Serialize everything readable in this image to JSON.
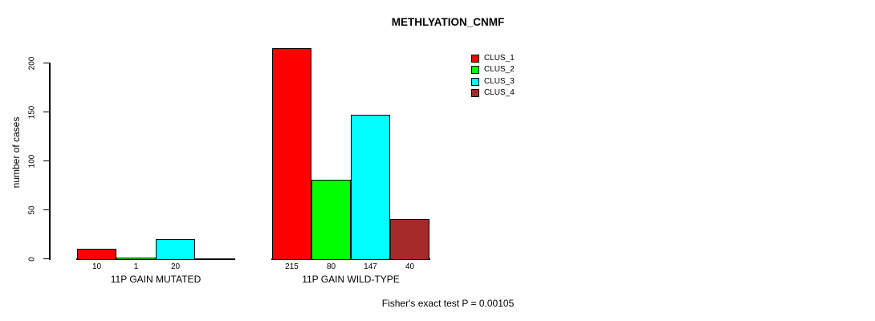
{
  "chart_data": {
    "type": "bar",
    "title": "METHLYATION_CNMF",
    "ylabel": "number of cases",
    "xlabel": "",
    "ylim": [
      0,
      220
    ],
    "yticks": [
      0,
      50,
      100,
      150,
      200
    ],
    "grid": false,
    "legend_position": "top-right",
    "categories": [
      "11P GAIN MUTATED",
      "11P GAIN WILD-TYPE"
    ],
    "series": [
      {
        "name": "CLUS_1",
        "color": "#ff0000",
        "values": [
          10,
          215
        ]
      },
      {
        "name": "CLUS_2",
        "color": "#00ff00",
        "values": [
          1,
          80
        ]
      },
      {
        "name": "CLUS_3",
        "color": "#00ffff",
        "values": [
          20,
          147
        ]
      },
      {
        "name": "CLUS_4",
        "color": "#a52a2a",
        "values": [
          0,
          40
        ]
      }
    ],
    "bar_value_labels": [
      [
        "10",
        "1",
        "20",
        null
      ],
      [
        "215",
        "80",
        "147",
        "40"
      ]
    ],
    "annotation": "Fisher's exact test P = 0.00105",
    "colors": {
      "axis": "#000000",
      "text": "#000000",
      "background": "#ffffff"
    }
  }
}
